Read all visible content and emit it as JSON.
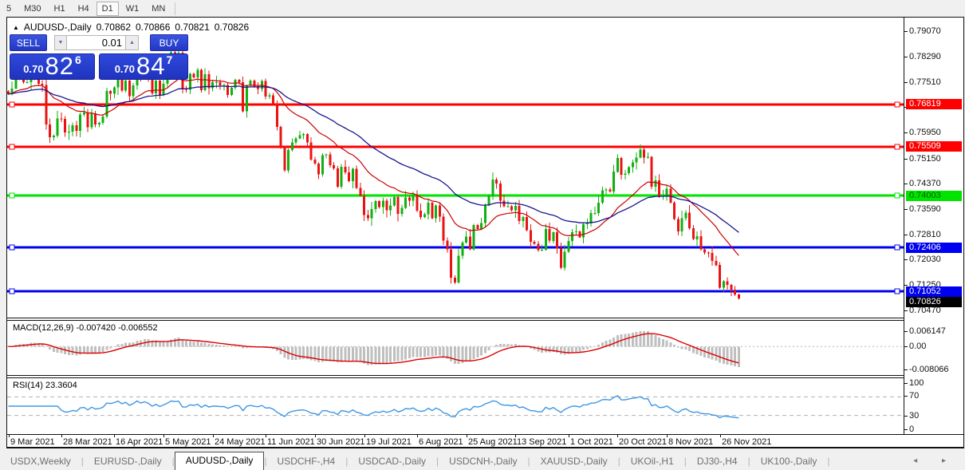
{
  "toolbar": {
    "timeframes": [
      "5",
      "M30",
      "H1",
      "H4",
      "D1",
      "W1",
      "MN"
    ],
    "active": "D1"
  },
  "header": {
    "collapse_icon": "triangle-up",
    "title": "AUDUSD-,Daily",
    "ohlc": {
      "open": "0.70862",
      "high": "0.70866",
      "low": "0.70821",
      "close": "0.70826"
    }
  },
  "trade_panel": {
    "sell_label": "SELL",
    "buy_label": "BUY",
    "volume": "0.01",
    "sell_price": {
      "prefix": "0.70",
      "big": "82",
      "sup": "6"
    },
    "buy_price": {
      "prefix": "0.70",
      "big": "84",
      "sup": "7"
    }
  },
  "price_axis": {
    "ticks": [
      "0.79070",
      "0.78290",
      "0.77510",
      "0.76730",
      "0.75950",
      "0.75150",
      "0.74370",
      "0.73590",
      "0.72810",
      "0.72030",
      "0.71250",
      "0.70470"
    ],
    "tick_values": [
      0.7907,
      0.7829,
      0.7751,
      0.7673,
      0.7595,
      0.7515,
      0.7437,
      0.7359,
      0.7281,
      0.7203,
      0.7125,
      0.7047
    ],
    "current_price": {
      "text": "0.70826",
      "value": 0.70826,
      "bg": "#000000",
      "fg": "#ffffff"
    }
  },
  "hlines": [
    {
      "label": "0.76819",
      "value": 0.76819,
      "color": "#fe0000",
      "text_color": "#ffffff"
    },
    {
      "label": "0.75509",
      "value": 0.75509,
      "color": "#fe0000",
      "text_color": "#ffffff"
    },
    {
      "label": "0.74003",
      "value": 0.74003,
      "color": "#00e400",
      "text_color": "#006000"
    },
    {
      "label": "0.72406",
      "value": 0.72406,
      "color": "#0000f0",
      "text_color": "#ffffff"
    },
    {
      "label": "0.71052",
      "value": 0.71052,
      "color": "#0000f0",
      "text_color": "#ffffff"
    }
  ],
  "macd_pane": {
    "label": "MACD(12,26,9) -0.007420 -0.006552",
    "axis_labels": [
      "0.006147",
      "0.00",
      "-0.008066"
    ],
    "bar_color": "#bfbfbf",
    "signal_color": "#dd0000"
  },
  "rsi_pane": {
    "label": "RSI(14) 23.3604",
    "axis_labels": [
      "100",
      "70",
      "30",
      "0"
    ],
    "line_color": "#3d97e3",
    "level_color": "#b0b0b0"
  },
  "date_axis": {
    "labels": [
      "9 Mar 2021",
      "28 Mar 2021",
      "16 Apr 2021",
      "5 May 2021",
      "24 May 2021",
      "11 Jun 2021",
      "30 Jun 2021",
      "19 Jul 2021",
      "6 Aug 2021",
      "25 Aug 2021",
      "13 Sep 2021",
      "1 Oct 2021",
      "20 Oct 2021",
      "8 Nov 2021",
      "26 Nov 2021"
    ],
    "bar_indices": [
      0,
      14,
      28,
      41,
      54,
      68,
      81,
      94,
      108,
      121,
      134,
      148,
      161,
      174,
      188
    ]
  },
  "tabs": {
    "items": [
      "USDX,Weekly",
      "EURUSD-,Daily",
      "AUDUSD-,Daily",
      "USDCHF-,H4",
      "USDCAD-,Daily",
      "USDCNH-,Daily",
      "XAUUSD-,Daily",
      "UKOil-,H1",
      "DJ30-,H4",
      "UK100-,Daily"
    ],
    "active_index": 2,
    "scroll_arrows": "◂ ▸"
  },
  "chart_data": {
    "type": "candlestick",
    "symbol": "AUDUSD-",
    "timeframe": "Daily",
    "ylim": [
      0.70241,
      0.79496
    ],
    "up_color": "#11b011",
    "down_color": "#ea1313",
    "closes": [
      0.7714,
      0.7731,
      0.7786,
      0.7762,
      0.775,
      0.775,
      0.78,
      0.776,
      0.7745,
      0.7742,
      0.762,
      0.758,
      0.7585,
      0.7638,
      0.7637,
      0.7595,
      0.7598,
      0.7617,
      0.76,
      0.765,
      0.7657,
      0.7611,
      0.7654,
      0.762,
      0.7625,
      0.7645,
      0.7723,
      0.7715,
      0.7734,
      0.7765,
      0.7725,
      0.7755,
      0.7707,
      0.774,
      0.78,
      0.7766,
      0.7796,
      0.7769,
      0.7716,
      0.7755,
      0.7711,
      0.7745,
      0.7784,
      0.7843,
      0.7833,
      0.7841,
      0.7729,
      0.7727,
      0.7776,
      0.7765,
      0.7788,
      0.7725,
      0.7775,
      0.7732,
      0.775,
      0.775,
      0.774,
      0.7742,
      0.7711,
      0.7733,
      0.7757,
      0.775,
      0.766,
      0.774,
      0.7755,
      0.7738,
      0.773,
      0.7754,
      0.7706,
      0.771,
      0.7684,
      0.7612,
      0.7552,
      0.7478,
      0.7541,
      0.7565,
      0.7577,
      0.7586,
      0.759,
      0.7565,
      0.7512,
      0.7499,
      0.7466,
      0.7525,
      0.7527,
      0.7494,
      0.7485,
      0.7428,
      0.7489,
      0.7472,
      0.7445,
      0.7483,
      0.7424,
      0.74,
      0.734,
      0.7331,
      0.7359,
      0.7383,
      0.7365,
      0.7385,
      0.7355,
      0.737,
      0.7396,
      0.7344,
      0.7362,
      0.7394,
      0.7385,
      0.7401,
      0.7354,
      0.7334,
      0.7343,
      0.7378,
      0.7331,
      0.737,
      0.7336,
      0.7262,
      0.7235,
      0.7147,
      0.7132,
      0.7215,
      0.7255,
      0.7274,
      0.7235,
      0.731,
      0.7297,
      0.7316,
      0.737,
      0.74,
      0.745,
      0.7438,
      0.7385,
      0.7367,
      0.7368,
      0.7355,
      0.7369,
      0.7322,
      0.7334,
      0.7294,
      0.7258,
      0.7252,
      0.7232,
      0.7233,
      0.7297,
      0.7261,
      0.7287,
      0.7237,
      0.7178,
      0.7227,
      0.726,
      0.7288,
      0.729,
      0.7272,
      0.7312,
      0.7314,
      0.7346,
      0.7346,
      0.7378,
      0.7417,
      0.7419,
      0.7413,
      0.7474,
      0.7517,
      0.7465,
      0.7469,
      0.7488,
      0.7503,
      0.7518,
      0.7542,
      0.7518,
      0.752,
      0.7428,
      0.7447,
      0.7398,
      0.74,
      0.7422,
      0.7379,
      0.7328,
      0.729,
      0.7331,
      0.7348,
      0.73,
      0.7266,
      0.7275,
      0.7235,
      0.7225,
      0.7224,
      0.7199,
      0.7186,
      0.7116,
      0.7136,
      0.7125,
      0.711,
      0.7095,
      0.70826
    ],
    "indicators": {
      "ma_fast": {
        "type": "EMA",
        "period": 20,
        "color": "#cc0000"
      },
      "ma_slow": {
        "type": "EMA",
        "period": 45,
        "color": "#17178f"
      },
      "macd": {
        "fast": 12,
        "slow": 26,
        "signal": 9,
        "value": -0.00742,
        "signal_value": -0.006552
      },
      "rsi": {
        "period": 14,
        "value": 23.3604,
        "levels": [
          70,
          30
        ]
      }
    }
  }
}
